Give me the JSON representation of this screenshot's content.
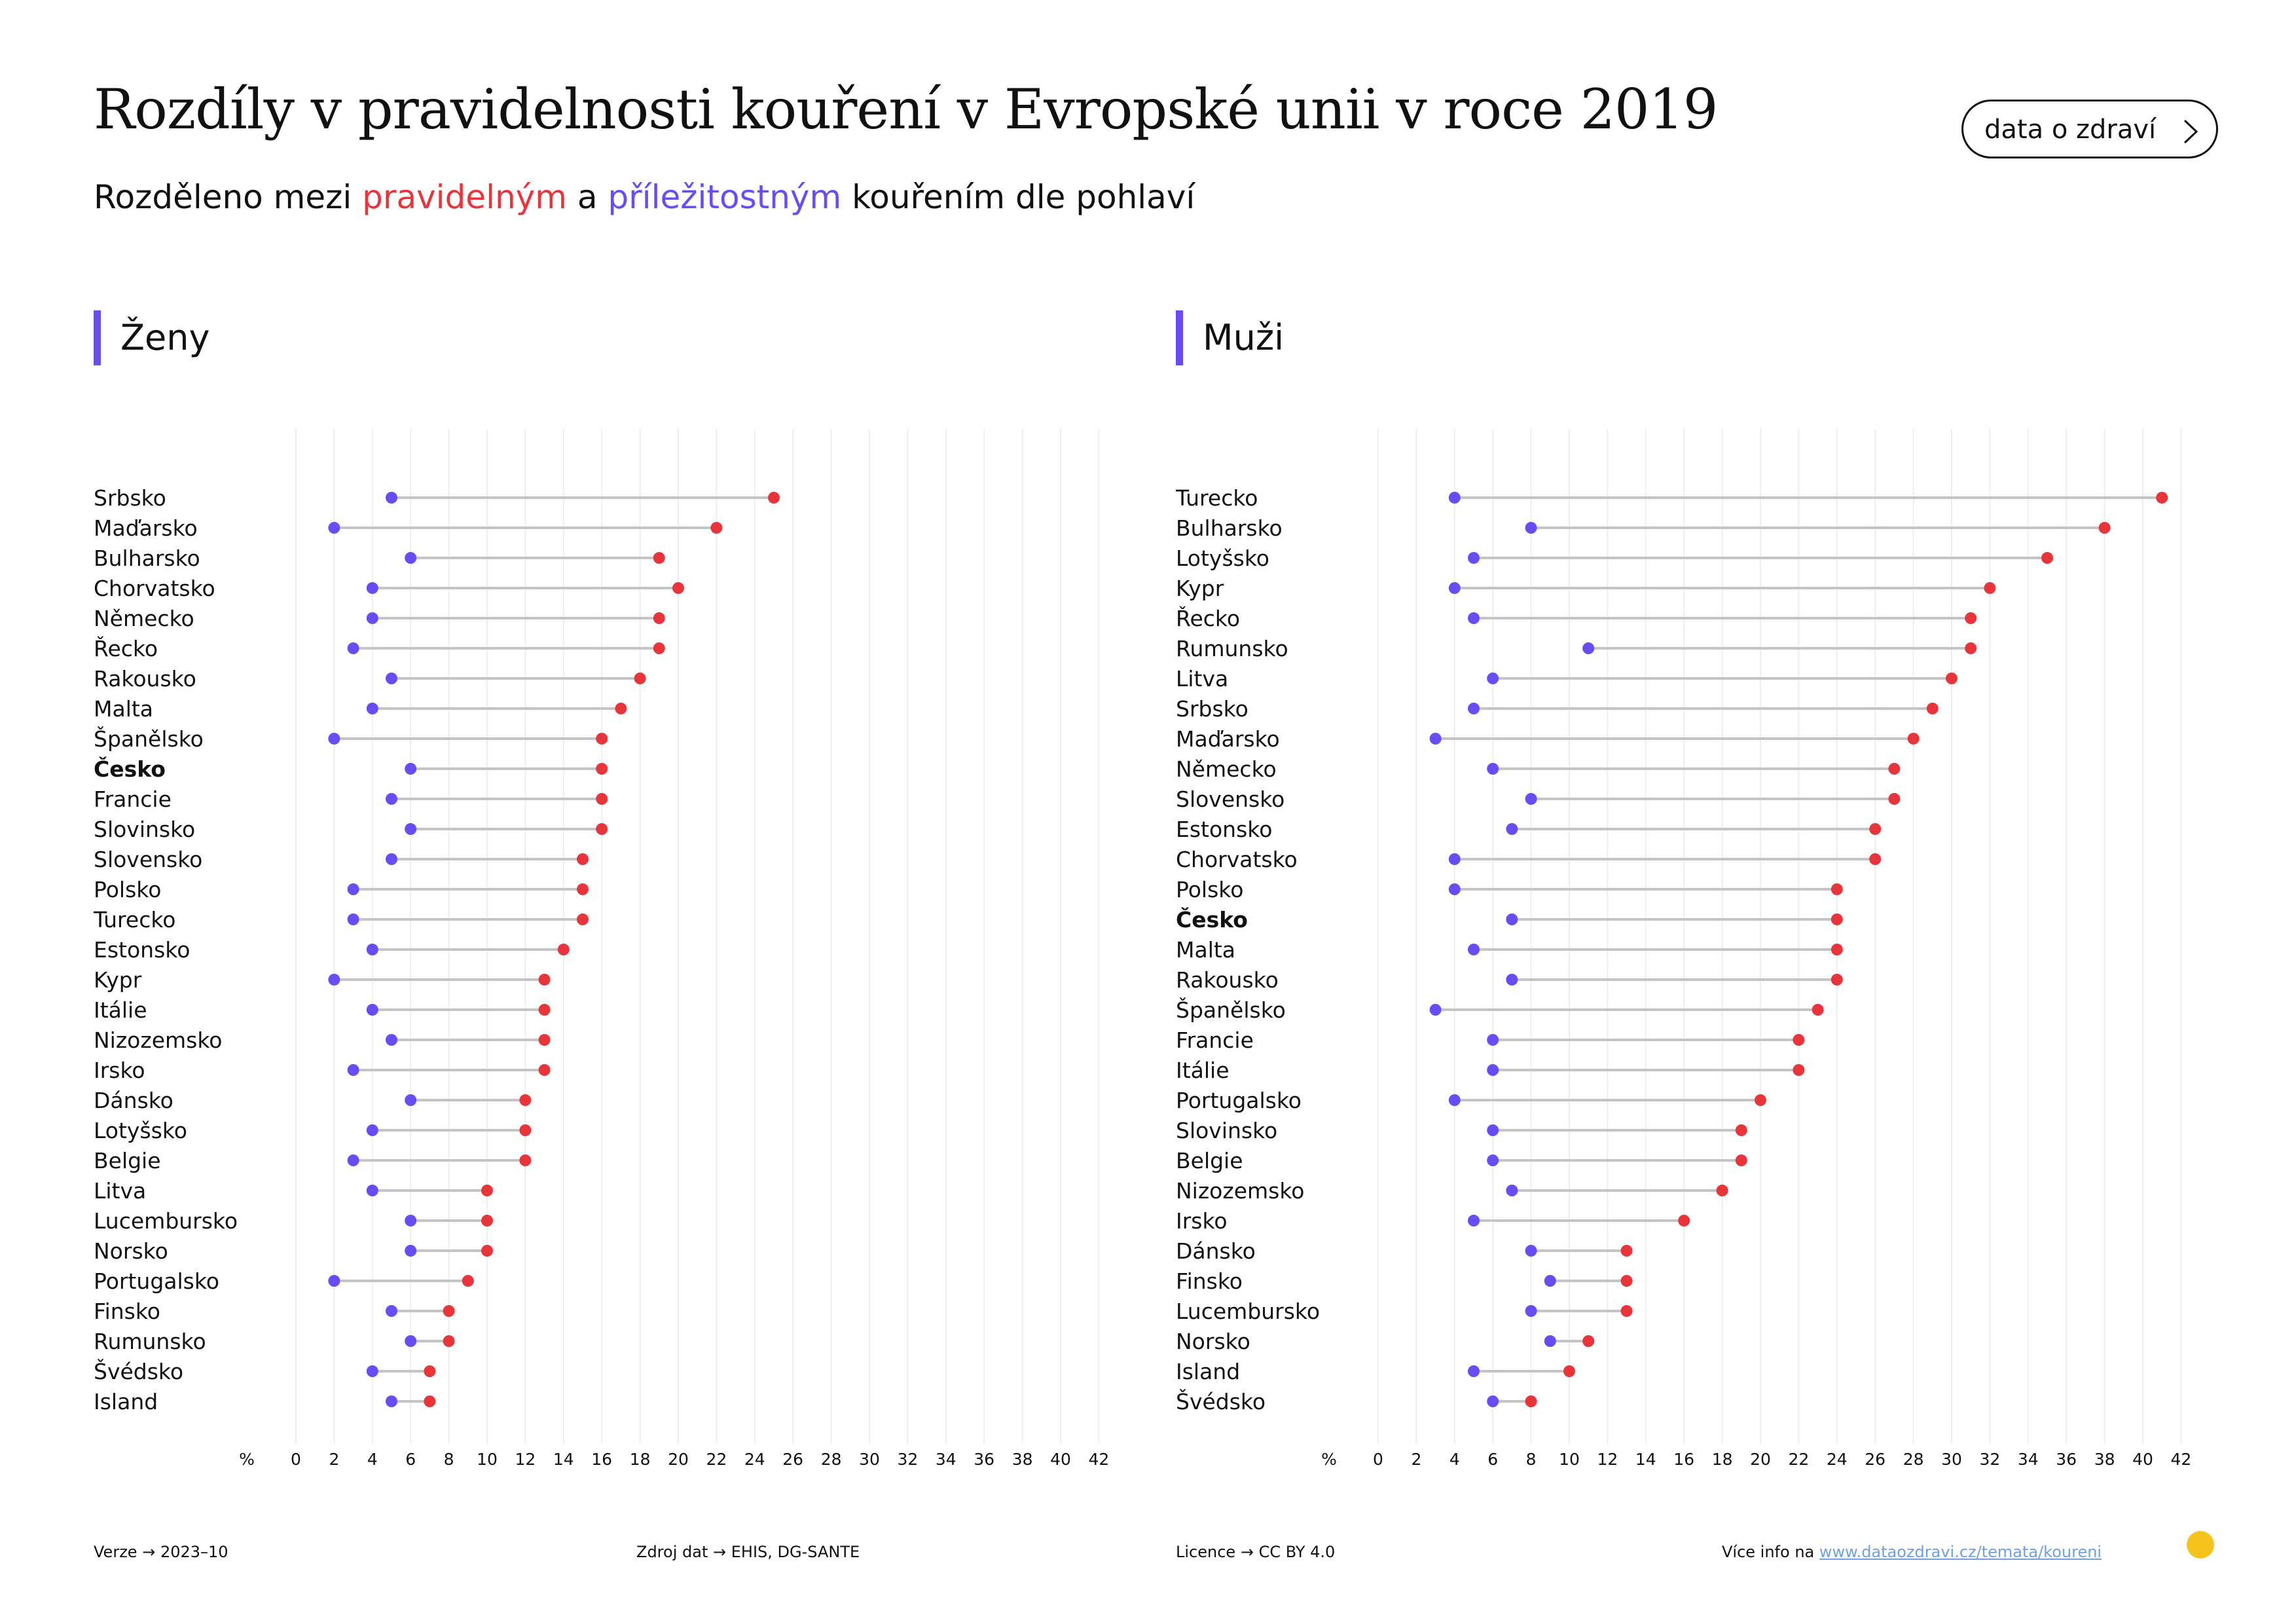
{
  "title": "Rozdíly v pravidelnosti kouření v Evropské unii v roce 2019",
  "subtitle": {
    "prefix": "Rozděleno mezi ",
    "regular": "pravidelným",
    "middle": " a ",
    "occasional": "příležitostným",
    "suffix": " kouřením dle pohlaví"
  },
  "link_button": {
    "label": "data o zdraví",
    "icon": "chevron-right-icon"
  },
  "colors": {
    "regular": "#e8353b",
    "occasional": "#6a4cf5",
    "connector": "#c4c4c4",
    "grid": "#eeeeee"
  },
  "chart_data": [
    {
      "type": "dumbbell",
      "title": "Ženy",
      "xlabel": "%",
      "xlim": [
        0,
        42
      ],
      "xticks": [
        0,
        2,
        4,
        6,
        8,
        10,
        12,
        14,
        16,
        18,
        20,
        22,
        24,
        26,
        28,
        30,
        32,
        34,
        36,
        38,
        40,
        42
      ],
      "highlight": "Česko",
      "categories": [
        "Srbsko",
        "Maďarsko",
        "Bulharsko",
        "Chorvatsko",
        "Německo",
        "Řecko",
        "Rakousko",
        "Malta",
        "Španělsko",
        "Česko",
        "Francie",
        "Slovinsko",
        "Slovensko",
        "Polsko",
        "Turecko",
        "Estonsko",
        "Kypr",
        "Itálie",
        "Nizozemsko",
        "Irsko",
        "Dánsko",
        "Lotyšsko",
        "Belgie",
        "Litva",
        "Lucembursko",
        "Norsko",
        "Portugalsko",
        "Finsko",
        "Rumunsko",
        "Švédsko",
        "Island"
      ],
      "series": [
        {
          "key": "occasional",
          "values": [
            5,
            2,
            6,
            4,
            4,
            3,
            5,
            4,
            2,
            6,
            5,
            6,
            5,
            3,
            3,
            4,
            2,
            4,
            5,
            3,
            6,
            4,
            3,
            4,
            6,
            6,
            2,
            5,
            6,
            4,
            5
          ]
        },
        {
          "key": "regular",
          "values": [
            25,
            22,
            19,
            20,
            19,
            19,
            18,
            17,
            16,
            16,
            16,
            16,
            15,
            15,
            15,
            14,
            13,
            13,
            13,
            13,
            12,
            12,
            12,
            10,
            10,
            10,
            9,
            8,
            8,
            7,
            7
          ]
        }
      ]
    },
    {
      "type": "dumbbell",
      "title": "Muži",
      "xlabel": "%",
      "xlim": [
        0,
        42
      ],
      "xticks": [
        0,
        2,
        4,
        6,
        8,
        10,
        12,
        14,
        16,
        18,
        20,
        22,
        24,
        26,
        28,
        30,
        32,
        34,
        36,
        38,
        40,
        42
      ],
      "highlight": "Česko",
      "categories": [
        "Turecko",
        "Bulharsko",
        "Lotyšsko",
        "Kypr",
        "Řecko",
        "Rumunsko",
        "Litva",
        "Srbsko",
        "Maďarsko",
        "Německo",
        "Slovensko",
        "Estonsko",
        "Chorvatsko",
        "Polsko",
        "Česko",
        "Malta",
        "Rakousko",
        "Španělsko",
        "Francie",
        "Itálie",
        "Portugalsko",
        "Slovinsko",
        "Belgie",
        "Nizozemsko",
        "Irsko",
        "Dánsko",
        "Finsko",
        "Lucembursko",
        "Norsko",
        "Island",
        "Švédsko"
      ],
      "series": [
        {
          "key": "occasional",
          "values": [
            4,
            8,
            5,
            4,
            5,
            11,
            6,
            5,
            3,
            6,
            8,
            7,
            4,
            4,
            7,
            5,
            7,
            3,
            6,
            6,
            4,
            6,
            6,
            7,
            5,
            8,
            9,
            8,
            9,
            5,
            6
          ]
        },
        {
          "key": "regular",
          "values": [
            41,
            38,
            35,
            32,
            31,
            31,
            30,
            29,
            28,
            27,
            27,
            26,
            26,
            24,
            24,
            24,
            24,
            23,
            22,
            22,
            20,
            19,
            19,
            18,
            16,
            13,
            13,
            13,
            11,
            10,
            8
          ]
        }
      ]
    }
  ],
  "footer": {
    "version_label": "Verze",
    "version_value": "2023–10",
    "source_label": "Zdroj dat",
    "source_value": "EHIS, DG-SANTE",
    "license_label": "Licence",
    "license_value": "CC BY 4.0",
    "more_info_label": "Více info na",
    "more_info_link": "www.dataozdravi.cz/temata/koureni",
    "arrow": "→"
  }
}
